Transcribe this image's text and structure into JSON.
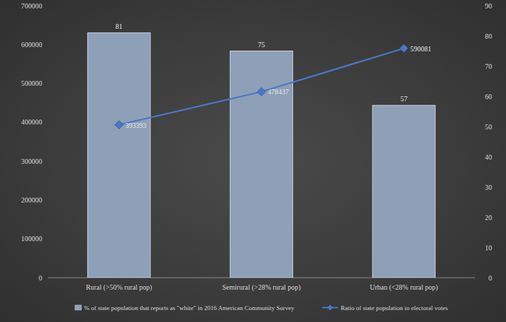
{
  "chart_data": {
    "type": "bar",
    "categories": [
      "Rural (>50% rural pop)",
      "Semirural (>28% rural pop)",
      "Urban (<28% rural pop)"
    ],
    "series": [
      {
        "name": "% of state population that reports as \"white\" in 2016 American Community Survey",
        "type": "bar",
        "color": "#8e9fb8",
        "axis": "y2",
        "values": [
          81,
          75,
          57
        ]
      },
      {
        "name": "Ratio of state population to electoral votes",
        "type": "line",
        "color": "#4a78c8",
        "marker": "diamond",
        "values": [
          393393,
          478437,
          590081
        ]
      }
    ],
    "ylim": [
      0,
      700000
    ],
    "yticks": [
      0,
      100000,
      200000,
      300000,
      400000,
      500000,
      600000,
      700000
    ],
    "y2lim": [
      0,
      90
    ],
    "y2ticks": [
      0,
      10,
      20,
      30,
      40,
      50,
      60,
      70,
      80,
      90
    ],
    "data_labels": true,
    "grid": false,
    "legend": "bottom"
  }
}
